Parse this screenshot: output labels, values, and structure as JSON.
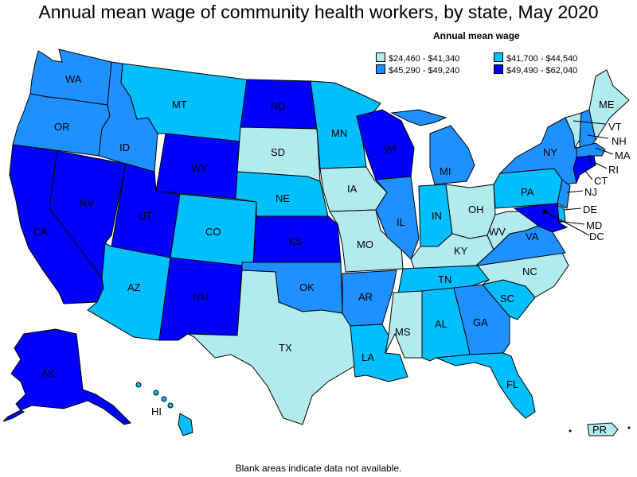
{
  "title": "Annual mean wage of community health workers, by state, May 2020",
  "legend": {
    "title": "Annual mean wage",
    "items": [
      {
        "label": "$24,460 - $41,340",
        "color": "#b2ebee"
      },
      {
        "label": "$41,700 - $44,540",
        "color": "#00bfff"
      },
      {
        "label": "$45,290 - $49,240",
        "color": "#1e90ff"
      },
      {
        "label": "$49,490 - $62,040",
        "color": "#0000ff"
      }
    ]
  },
  "states": {
    "WA": "WA",
    "OR": "OR",
    "CA": "CA",
    "NV": "NV",
    "ID": "ID",
    "MT": "MT",
    "WY": "WY",
    "UT": "UT",
    "AZ": "AZ",
    "CO": "CO",
    "NM": "NM",
    "ND": "ND",
    "SD": "SD",
    "NE": "NE",
    "KS": "KS",
    "OK": "OK",
    "TX": "TX",
    "MN": "MN",
    "IA": "IA",
    "MO": "MO",
    "AR": "AR",
    "LA": "LA",
    "WI": "WI",
    "IL": "IL",
    "MI": "MI",
    "IN": "IN",
    "OH": "OH",
    "KY": "KY",
    "TN": "TN",
    "MS": "MS",
    "AL": "AL",
    "GA": "GA",
    "FL": "FL",
    "SC": "SC",
    "NC": "NC",
    "VA": "VA",
    "WV": "WV",
    "PA": "PA",
    "NY": "NY",
    "ME": "ME",
    "VT": "VT",
    "NH": "NH",
    "MA": "MA",
    "RI": "RI",
    "CT": "CT",
    "NJ": "NJ",
    "DE": "DE",
    "MD": "MD",
    "DC": "DC",
    "AK": "AK",
    "HI": "HI",
    "PR": "PR"
  },
  "footnote": "Blank areas indicate data not available."
}
